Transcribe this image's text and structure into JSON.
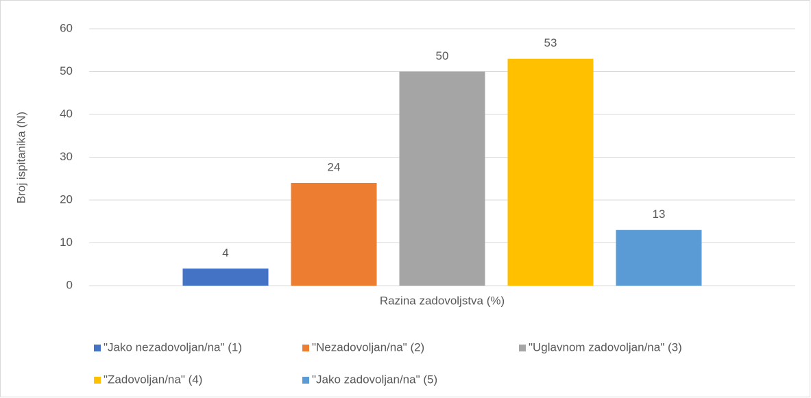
{
  "chart_data": {
    "type": "bar",
    "xlabel": "Razina zadovoljstva (%)",
    "ylabel": "Broj ispitanika (N)",
    "categories": [
      null
    ],
    "series": [
      {
        "name": "\"Jako nezadovoljan/na\" (1)",
        "color": "#4472c4",
        "values": [
          4
        ]
      },
      {
        "name": "\"Nezadovoljan/na\" (2)",
        "color": "#ed7d31",
        "values": [
          24
        ]
      },
      {
        "name": "\"Uglavnom zadovoljan/na\" (3)",
        "color": "#a5a5a5",
        "values": [
          50
        ]
      },
      {
        "name": "\"Zadovoljan/na\" (4)",
        "color": "#ffc000",
        "values": [
          53
        ]
      },
      {
        "name": "\"Jako zadovoljan/na\" (5)",
        "color": "#5b9bd5",
        "values": [
          13
        ]
      }
    ],
    "ylim": [
      0,
      60
    ],
    "yticks": [
      0,
      10,
      20,
      30,
      40,
      50,
      60
    ],
    "grid": true,
    "legend": "bottom"
  }
}
